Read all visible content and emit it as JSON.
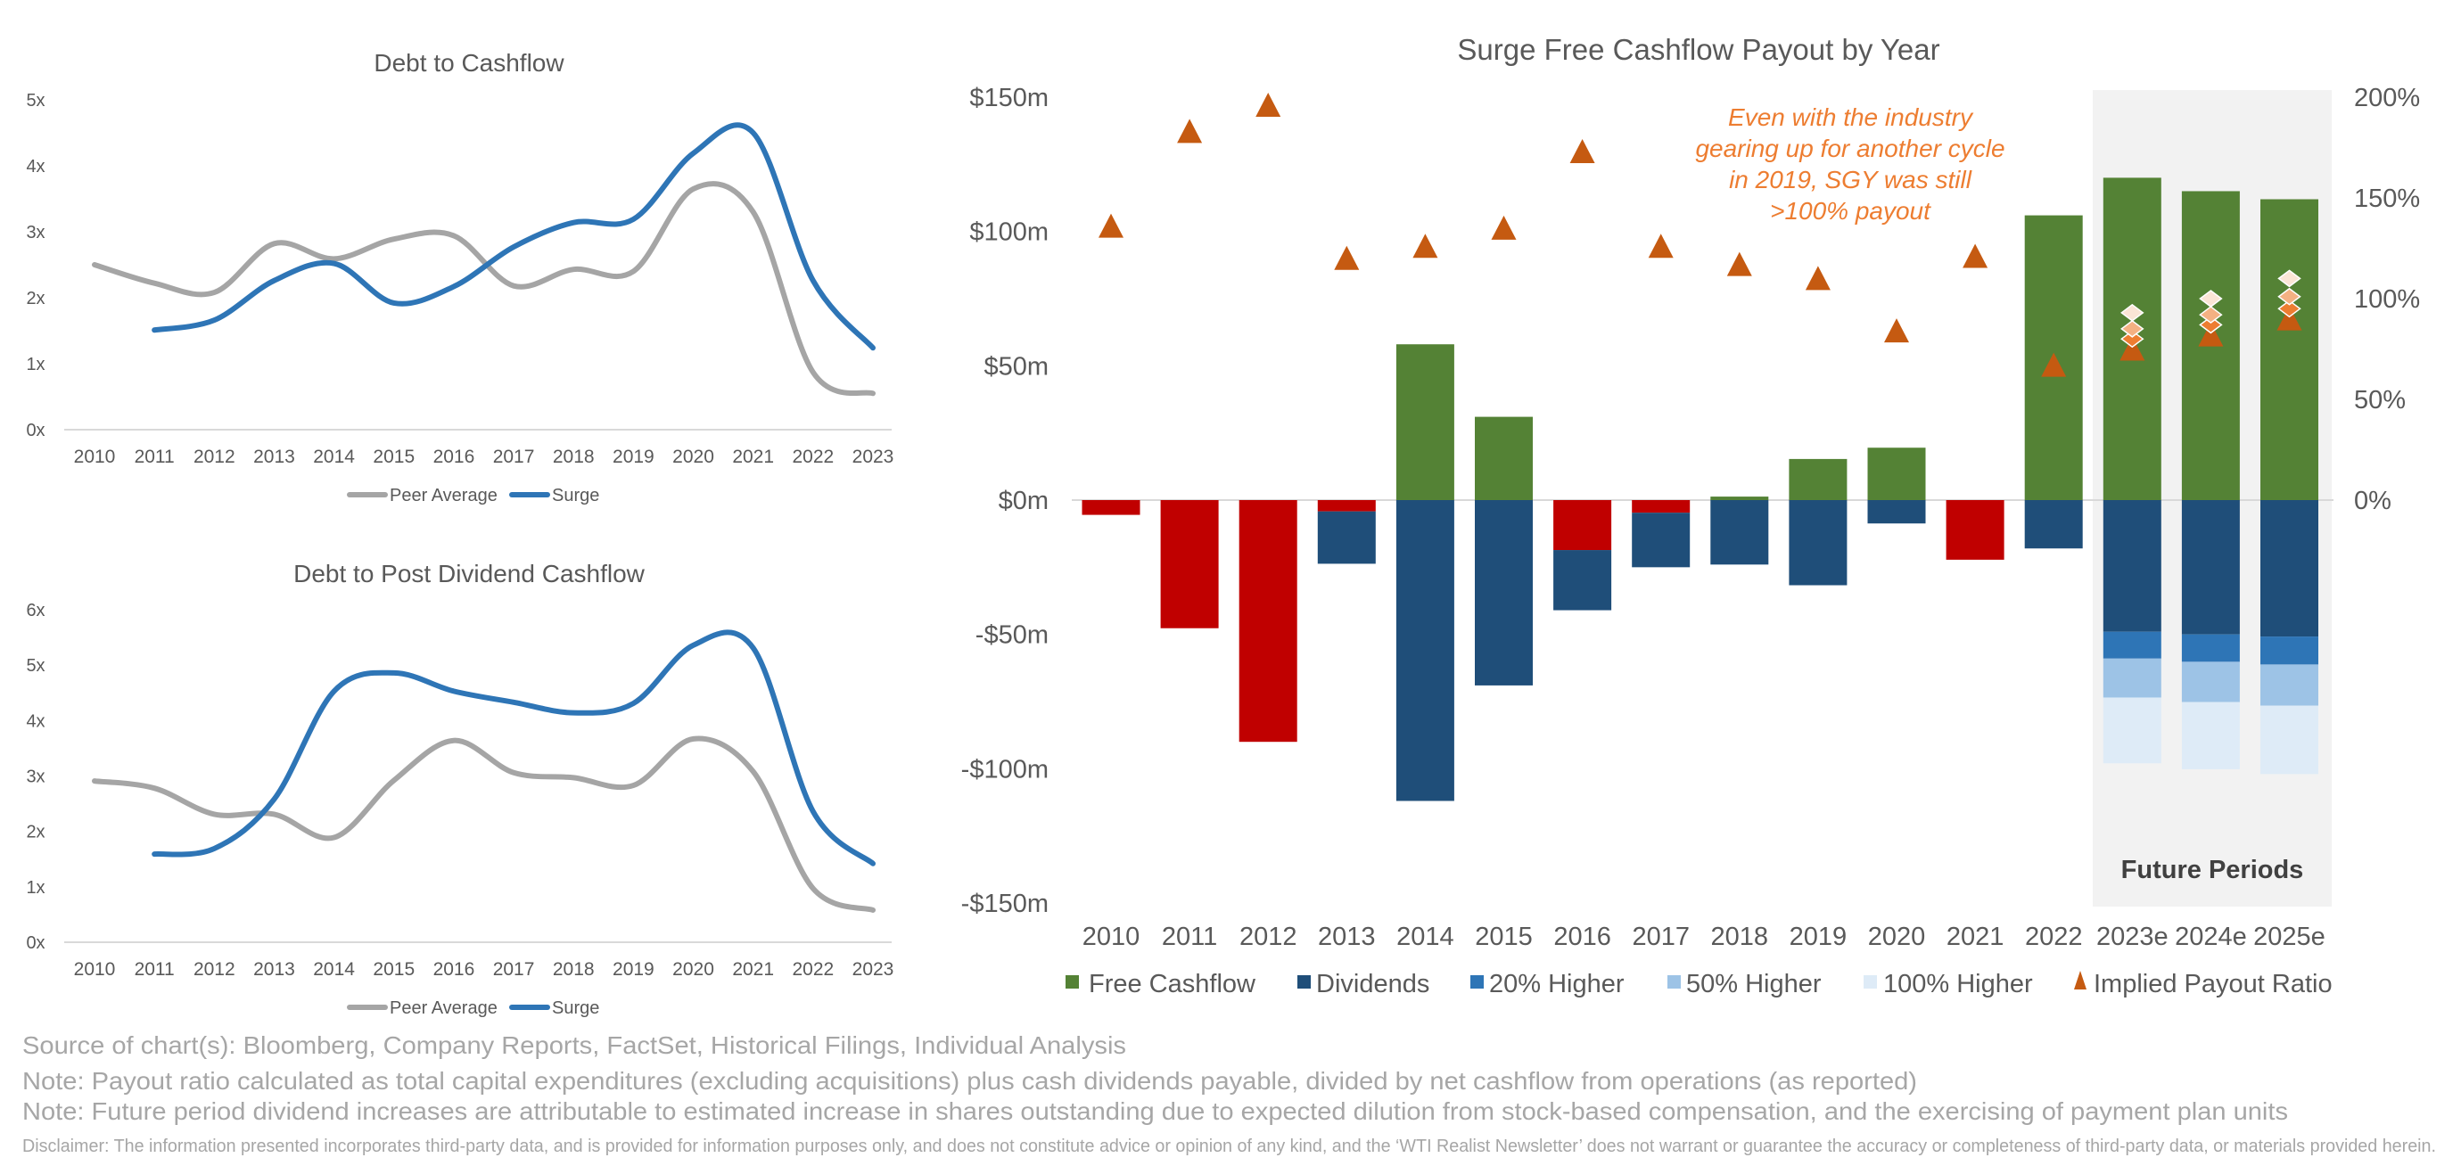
{
  "colors": {
    "peer": "#A5A5A5",
    "surge": "#2E75B6",
    "free_cashflow": "#548235",
    "negative_fcf": "#C00000",
    "dividends": "#1F4E79",
    "higher20": "#2E75B6",
    "higher50": "#9DC3E6",
    "higher100": "#DEEBF7",
    "payout": "#C55A11",
    "payout20": "#ED7D31",
    "payout50": "#F4B183",
    "payout100": "#FBE5D6",
    "future_bg": "#F2F2F2",
    "annotation": "#ED7D31"
  },
  "chart_data": [
    {
      "type": "line",
      "title": "Debt to Cashflow",
      "x": [
        "2010",
        "2011",
        "2012",
        "2013",
        "2014",
        "2015",
        "2016",
        "2017",
        "2018",
        "2019",
        "2020",
        "2021",
        "2022",
        "2023"
      ],
      "yticks": [
        "0x",
        "1x",
        "2x",
        "3x",
        "4x",
        "5x"
      ],
      "ylim": [
        0,
        5
      ],
      "series": [
        {
          "name": "Peer Average",
          "values": [
            2.5,
            2.22,
            2.08,
            2.82,
            2.59,
            2.89,
            2.94,
            2.18,
            2.43,
            2.4,
            3.65,
            3.3,
            0.87,
            0.55
          ]
        },
        {
          "name": "Surge",
          "values": [
            null,
            1.51,
            1.66,
            2.26,
            2.52,
            1.92,
            2.17,
            2.77,
            3.14,
            3.19,
            4.19,
            4.5,
            2.26,
            1.24
          ]
        }
      ],
      "legend": "bottom"
    },
    {
      "type": "line",
      "title": "Debt to Post Dividend Cashflow",
      "x": [
        "2010",
        "2011",
        "2012",
        "2013",
        "2014",
        "2015",
        "2016",
        "2017",
        "2018",
        "2019",
        "2020",
        "2021",
        "2022",
        "2023"
      ],
      "yticks": [
        "0x",
        "1x",
        "2x",
        "3x",
        "4x",
        "5x",
        "6x"
      ],
      "ylim": [
        0,
        6
      ],
      "series": [
        {
          "name": "Peer Average",
          "values": [
            2.91,
            2.78,
            2.31,
            2.31,
            1.89,
            2.92,
            3.64,
            3.06,
            2.97,
            2.83,
            3.67,
            3.08,
            0.97,
            0.58
          ]
        },
        {
          "name": "Surge",
          "values": [
            null,
            1.59,
            1.69,
            2.58,
            4.53,
            4.86,
            4.53,
            4.33,
            4.14,
            4.31,
            5.36,
            5.31,
            2.36,
            1.42
          ]
        }
      ],
      "legend": "bottom"
    },
    {
      "type": "bar",
      "title": "Surge Free Cashflow Payout by Year",
      "categories": [
        "2010",
        "2011",
        "2012",
        "2013",
        "2014",
        "2015",
        "2016",
        "2017",
        "2018",
        "2019",
        "2020",
        "2021",
        "2022",
        "2023e",
        "2024e",
        "2025e"
      ],
      "ylim": [
        -150,
        150
      ],
      "yticks": [
        "-$150m",
        "-$100m",
        "-$50m",
        "$0m",
        "$50m",
        "$100m",
        "$150m"
      ],
      "y2lim": [
        0,
        200
      ],
      "y2ticks": [
        "0%",
        "50%",
        "100%",
        "150%",
        "200%"
      ],
      "units": "$m",
      "series": [
        {
          "name": "Free Cashflow",
          "values": [
            -5.5,
            -47.7,
            -90,
            -4.2,
            58,
            31,
            -18.6,
            -4.7,
            1.3,
            15.3,
            19.5,
            -22.2,
            106,
            120,
            115,
            112
          ]
        },
        {
          "name": "Dividends",
          "values": [
            0,
            0,
            0,
            -19.5,
            -112,
            -69,
            -22.4,
            -20.3,
            -24,
            -31.7,
            -8.7,
            0,
            -18,
            -49,
            -50,
            -50.8
          ]
        },
        {
          "name": "20% Higher",
          "values": [
            0,
            0,
            0,
            0,
            0,
            0,
            0,
            0,
            0,
            0,
            0,
            0,
            0,
            -10,
            -10.2,
            -10.4
          ]
        },
        {
          "name": "50% Higher",
          "values": [
            0,
            0,
            0,
            0,
            0,
            0,
            0,
            0,
            0,
            0,
            0,
            0,
            0,
            -14.5,
            -15,
            -15.3
          ]
        },
        {
          "name": "100% Higher",
          "values": [
            0,
            0,
            0,
            0,
            0,
            0,
            0,
            0,
            0,
            0,
            0,
            0,
            0,
            -24.5,
            -25,
            -25.5
          ]
        },
        {
          "name": "Implied Payout Ratio",
          "axis": "right",
          "values": [
            136,
            183,
            196,
            120,
            126,
            135,
            173,
            126,
            117,
            110,
            84,
            121,
            67,
            75,
            82,
            90
          ]
        }
      ],
      "scenario_payout": {
        "20% Higher": [
          null,
          null,
          null,
          null,
          null,
          null,
          null,
          null,
          null,
          null,
          null,
          null,
          null,
          80,
          87,
          95
        ],
        "50% Higher": [
          null,
          null,
          null,
          null,
          null,
          null,
          null,
          null,
          null,
          null,
          null,
          null,
          null,
          85,
          92,
          101
        ],
        "100% Higher": [
          null,
          null,
          null,
          null,
          null,
          null,
          null,
          null,
          null,
          null,
          null,
          null,
          null,
          93,
          100,
          110
        ]
      },
      "future_label": "Future Periods",
      "annotation": [
        "Even with the industry",
        "gearing up for another cycle",
        "in 2019, SGY was still",
        ">100% payout"
      ],
      "legend": "bottom"
    }
  ],
  "footer": {
    "source": "Source of chart(s): Bloomberg, Company Reports, FactSet, Historical Filings, Individual Analysis",
    "note1": "Note: Payout ratio calculated as total capital expenditures (excluding acquisitions) plus cash dividends payable, divided by net cashflow from operations (as reported)",
    "note2": "Note: Future period dividend increases are attributable to estimated increase in shares outstanding due to expected dilution from stock-based compensation, and the exercising of payment plan units",
    "disclaimer": "Disclaimer: The information presented incorporates third-party data, and is provided for information purposes only, and does not constitute advice or opinion of any kind, and the ‘WTI Realist Newsletter’ does not warrant or guarantee the accuracy or completeness of third-party data, or materials provided herein."
  }
}
